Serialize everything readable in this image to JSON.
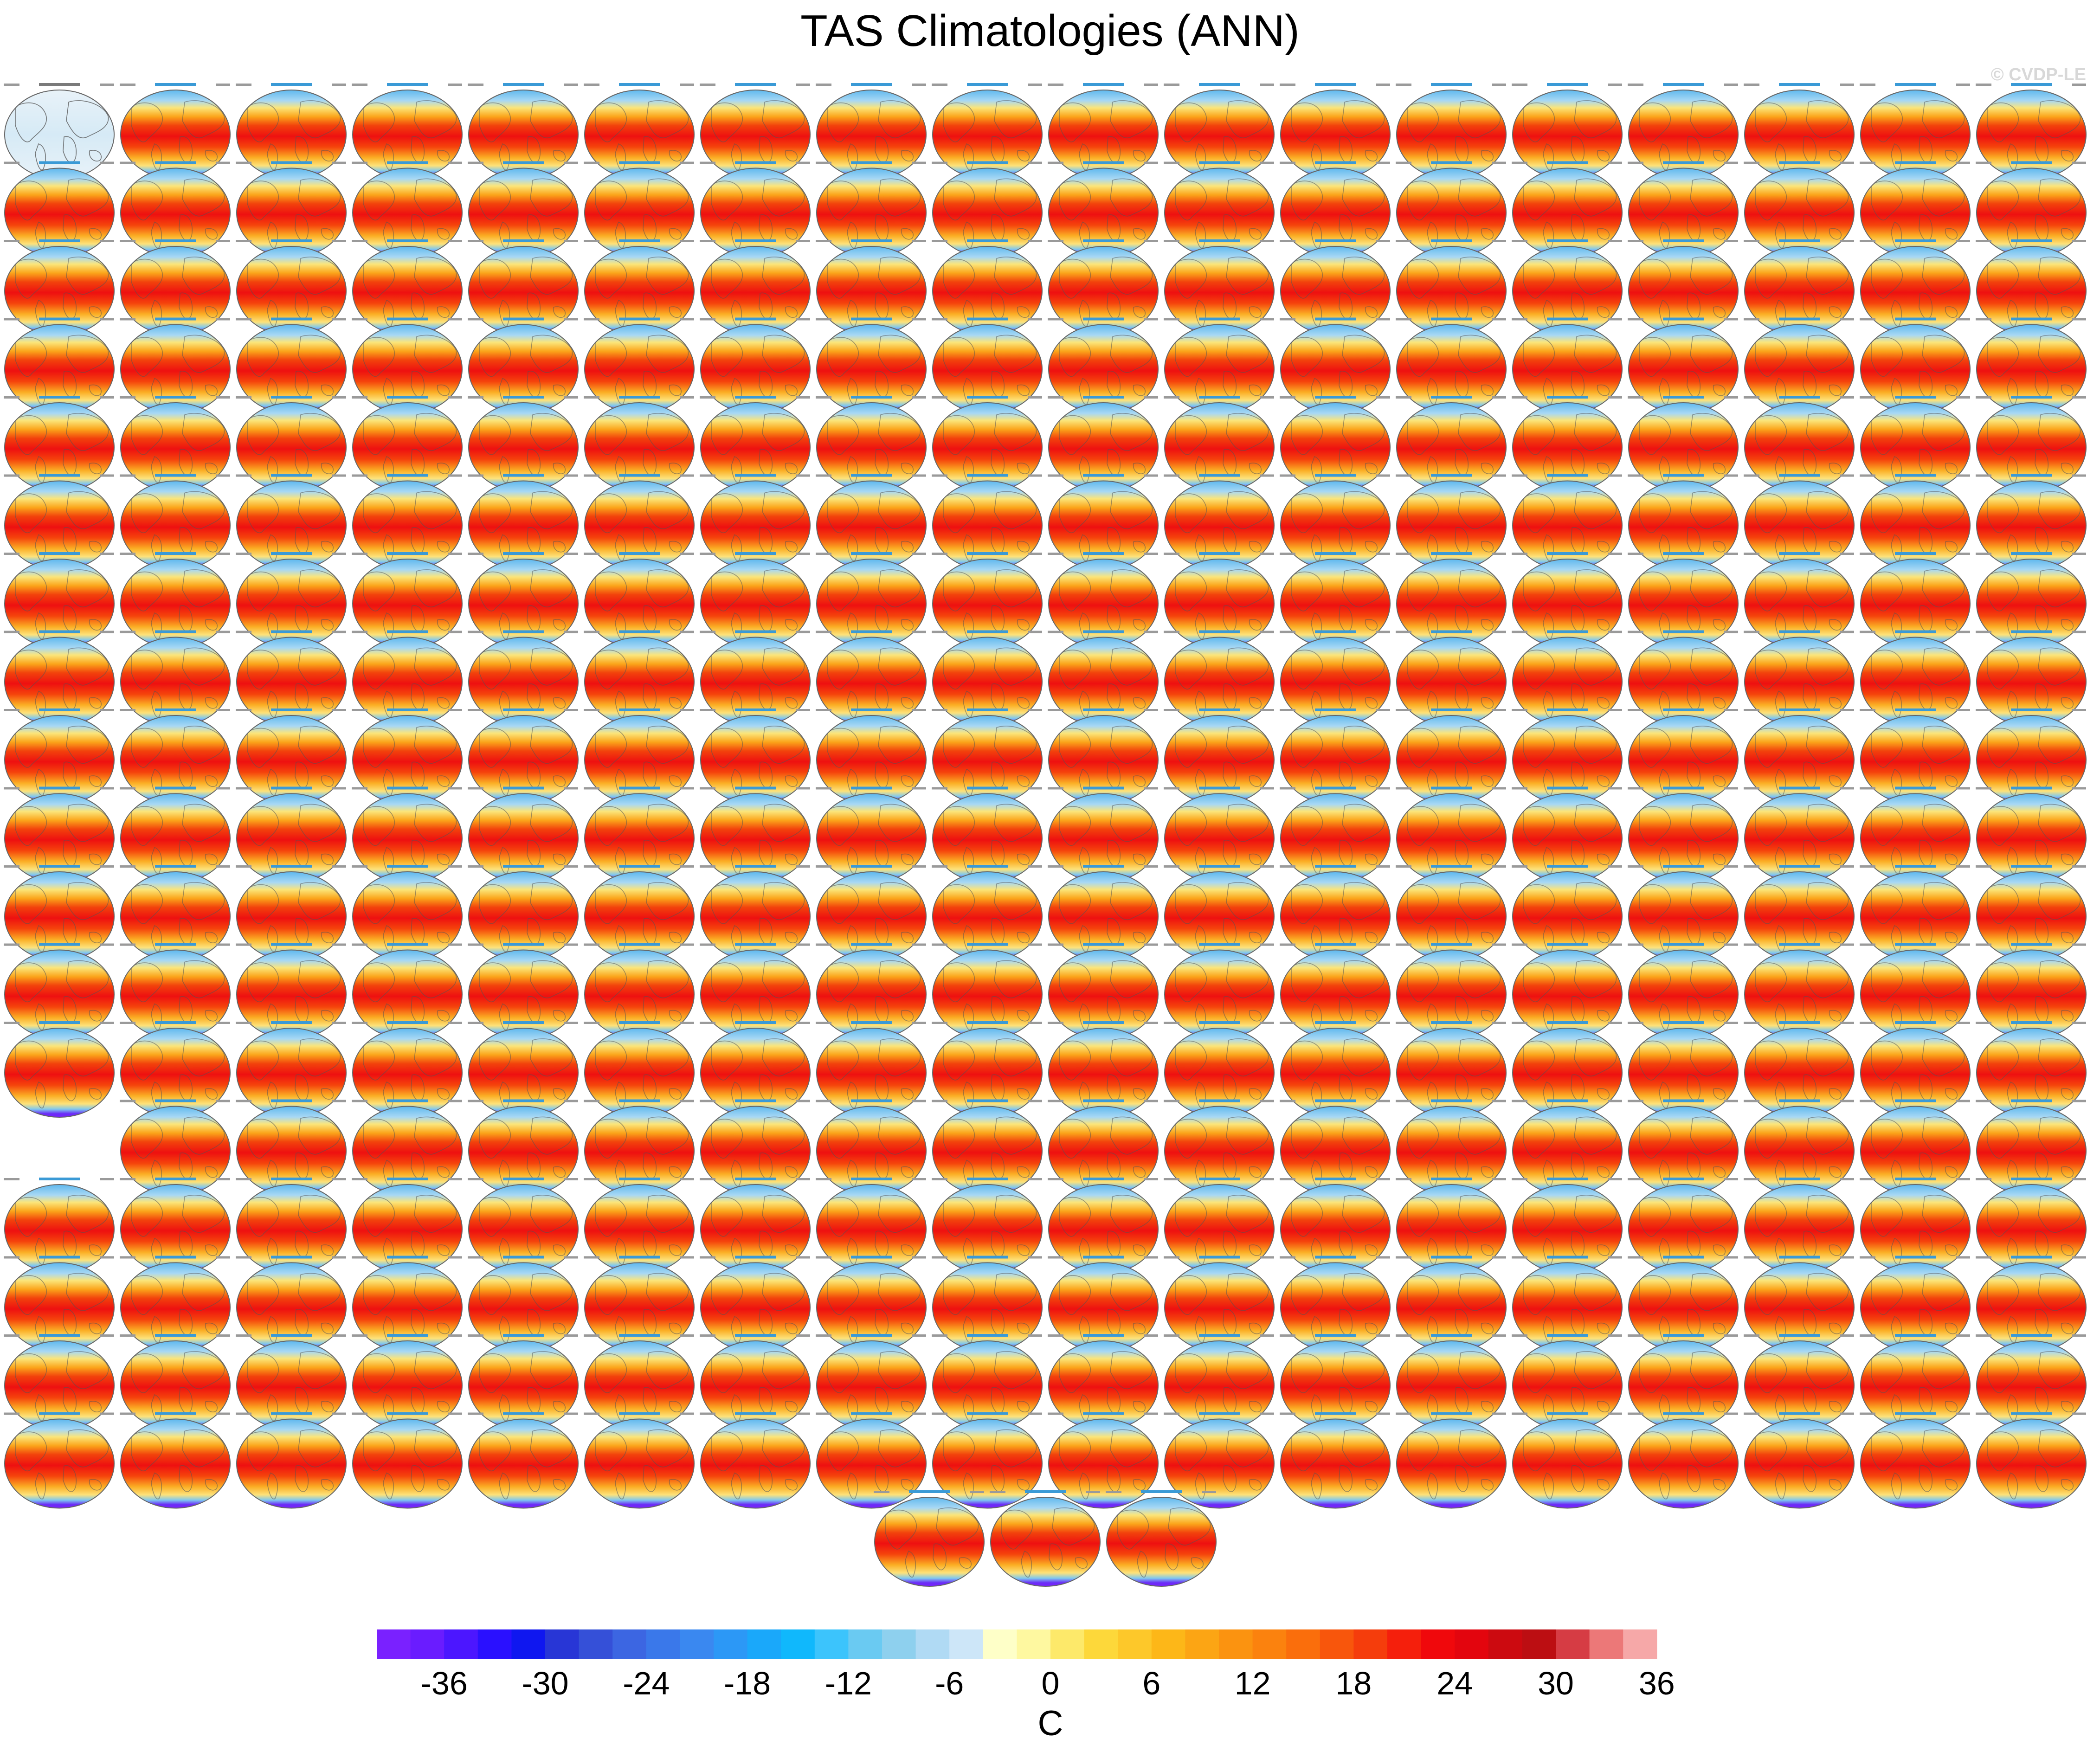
{
  "chart_data": {
    "type": "heatmap",
    "title": "TAS Climatologies (ANN)",
    "watermark": "© CVDP-LE",
    "panel_grid": {
      "rows": 19,
      "columns": 18,
      "row_panel_counts": [
        18,
        18,
        18,
        18,
        18,
        18,
        18,
        18,
        18,
        18,
        18,
        18,
        18,
        17,
        18,
        18,
        18,
        18,
        3
      ],
      "row13_first_empty": true,
      "first_panel": "observations"
    },
    "colorbar": {
      "label": "C",
      "levels": [
        -40,
        -38,
        -36,
        -34,
        -32,
        -30,
        -28,
        -26,
        -24,
        -22,
        -20,
        -18,
        -16,
        -14,
        -12,
        -10,
        -8,
        -6,
        -4,
        -2,
        0,
        2,
        4,
        6,
        8,
        10,
        12,
        14,
        16,
        18,
        20,
        22,
        24,
        26,
        28,
        30,
        32,
        34,
        36,
        38,
        40
      ],
      "tick_values": [
        -36,
        -30,
        -24,
        -18,
        -12,
        -6,
        0,
        6,
        12,
        18,
        24,
        30,
        36
      ],
      "tick_labels": [
        "-36",
        "-30",
        "-24",
        "-18",
        "-12",
        "-6",
        "0",
        "6",
        "12",
        "18",
        "24",
        "30",
        "36"
      ],
      "colors": [
        "#7a21ff",
        "#6a1cff",
        "#4c16ff",
        "#2a10ff",
        "#0f17f0",
        "#2836d6",
        "#3550d8",
        "#3c66e2",
        "#3a78ea",
        "#3a88f0",
        "#2c98f6",
        "#1aa8fa",
        "#10b8fc",
        "#3cc4fc",
        "#6acaf2",
        "#8ed0ee",
        "#b0daf4",
        "#cde6f8",
        "#feffc8",
        "#fef8a0",
        "#fde96a",
        "#fdd83a",
        "#fdc82a",
        "#fdb718",
        "#fca514",
        "#fb9310",
        "#fb820e",
        "#fa6e0c",
        "#f8560c",
        "#f53d0c",
        "#f51f0c",
        "#f0080c",
        "#e3050e",
        "#cc0a10",
        "#bc0e12",
        "#d63c44",
        "#ec7878",
        "#f6a8a8"
      ]
    }
  }
}
